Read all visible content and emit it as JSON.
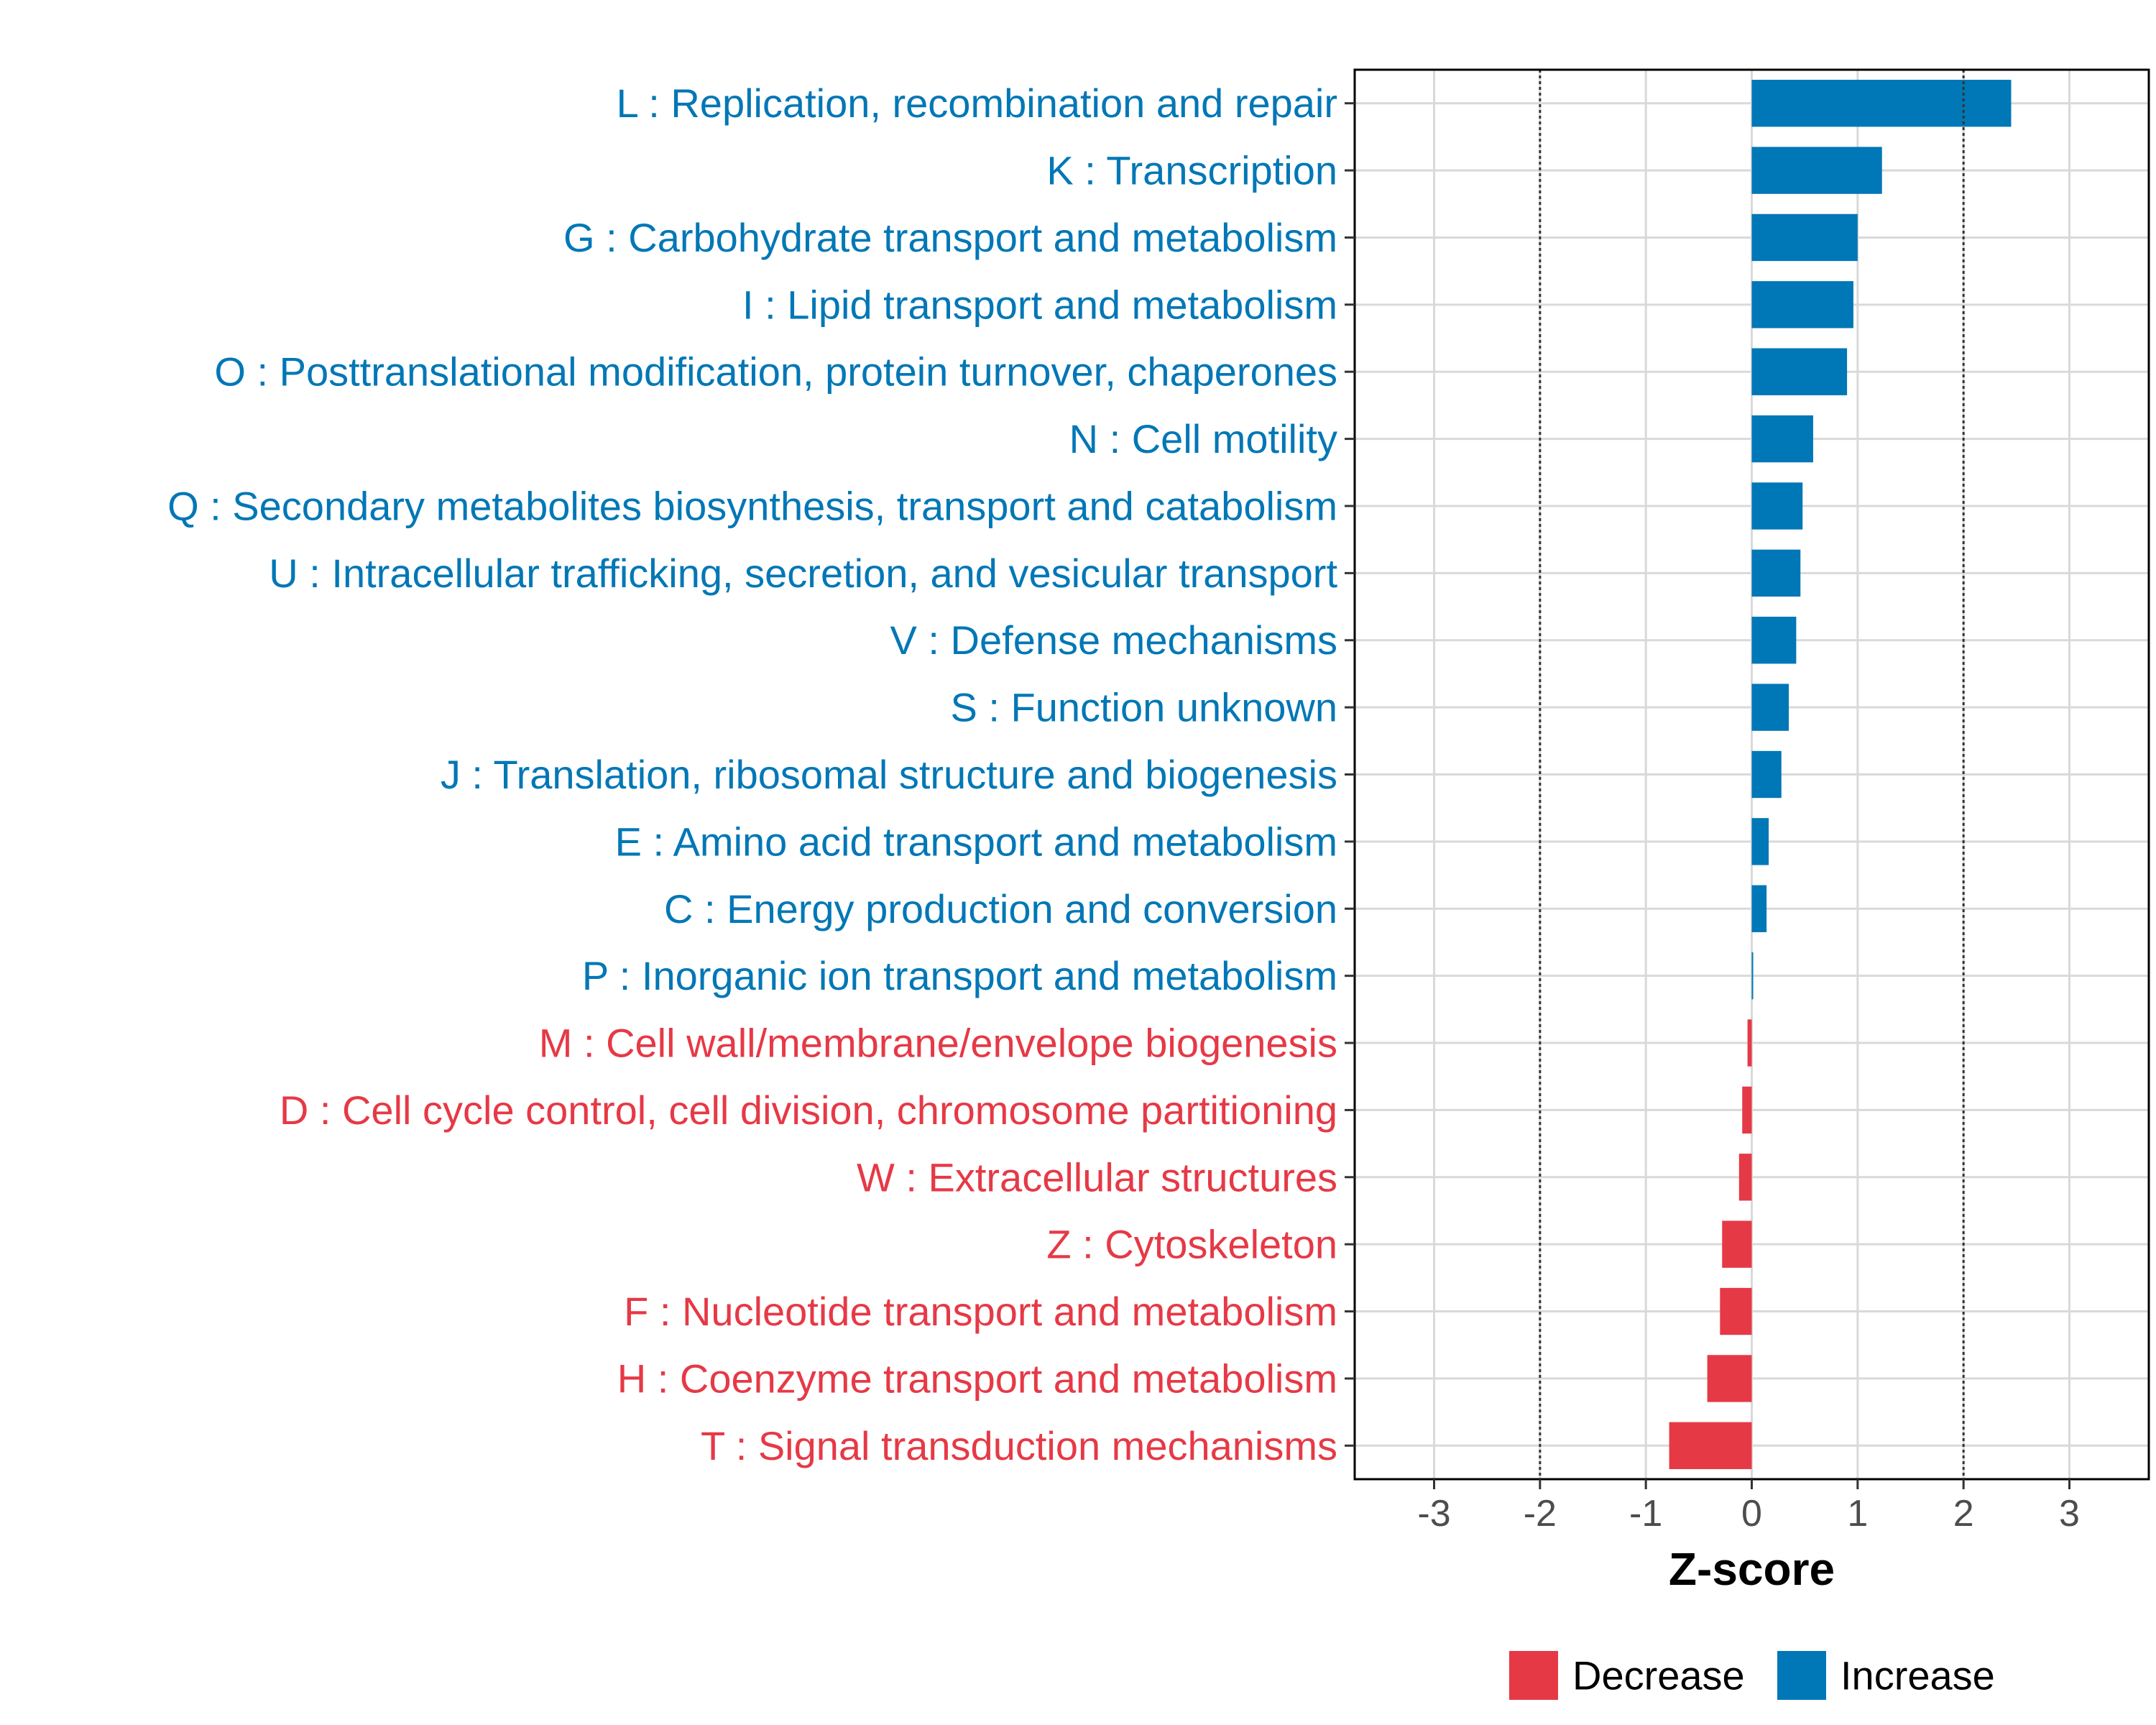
{
  "chart_data": {
    "type": "bar",
    "orientation": "horizontal",
    "xlabel": "Z-score",
    "xlim": [
      -3.75,
      3.75
    ],
    "xticks": [
      -3,
      -2,
      -1,
      0,
      1,
      2,
      3
    ],
    "reference_lines": [
      -2,
      2
    ],
    "grid": true,
    "colors": {
      "Decrease": "#E63946",
      "Increase": "#0077B6"
    },
    "legend": {
      "position": "bottom",
      "entries": [
        "Decrease",
        "Increase"
      ]
    },
    "categories": [
      "L : Replication, recombination and repair",
      "K : Transcription",
      "G : Carbohydrate transport and metabolism",
      "I : Lipid transport and metabolism",
      "O : Posttranslational modification, protein turnover, chaperones",
      "N : Cell motility",
      "Q : Secondary metabolites biosynthesis, transport and catabolism",
      "U : Intracellular trafficking, secretion, and vesicular transport",
      "V : Defense mechanisms",
      "S : Function unknown",
      "J : Translation, ribosomal structure and biogenesis",
      "E : Amino acid transport and metabolism",
      "C : Energy production and conversion",
      "P : Inorganic ion transport and metabolism",
      "M : Cell wall/membrane/envelope biogenesis",
      "D : Cell cycle control, cell division, chromosome partitioning",
      "W : Extracellular structures",
      "Z : Cytoskeleton",
      "F : Nucleotide transport and metabolism",
      "H : Coenzyme transport and metabolism",
      "T : Signal transduction mechanisms"
    ],
    "values": [
      2.45,
      1.23,
      1.0,
      0.96,
      0.9,
      0.58,
      0.48,
      0.46,
      0.42,
      0.35,
      0.28,
      0.16,
      0.14,
      0.01,
      -0.04,
      -0.09,
      -0.12,
      -0.28,
      -0.3,
      -0.42,
      -0.78
    ],
    "direction": [
      "Increase",
      "Increase",
      "Increase",
      "Increase",
      "Increase",
      "Increase",
      "Increase",
      "Increase",
      "Increase",
      "Increase",
      "Increase",
      "Increase",
      "Increase",
      "Increase",
      "Decrease",
      "Decrease",
      "Decrease",
      "Decrease",
      "Decrease",
      "Decrease",
      "Decrease"
    ]
  }
}
